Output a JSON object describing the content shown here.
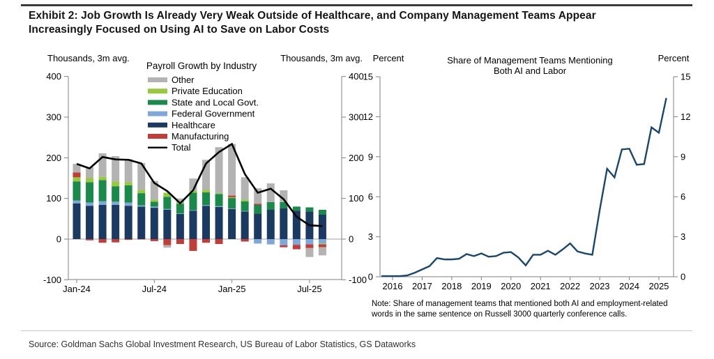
{
  "page": {
    "title_line1": "Exhibit 2: Job Growth Is Already Very Weak Outside of Healthcare, and Company Management Teams Appear",
    "title_line2": "Increasingly Focused on Using AI to Save on Labor Costs",
    "source": "Source: Goldman Sachs Global Investment Research, US Bureau of Labor Statistics, GS Dataworks"
  },
  "chart_data": [
    {
      "type": "bar",
      "stacked": true,
      "title": "Payroll Growth by Industry",
      "axis_label_left": "Thousands, 3m avg.",
      "axis_label_right": "Thousands, 3m avg.",
      "ylim": [
        -100,
        400
      ],
      "yticks": [
        400,
        300,
        200,
        100,
        0,
        -100
      ],
      "grid": "zero-line-only",
      "categories": [
        "Jan-24",
        "Feb-24",
        "Mar-24",
        "Apr-24",
        "May-24",
        "Jun-24",
        "Jul-24",
        "Aug-24",
        "Sep-24",
        "Oct-24",
        "Nov-24",
        "Dec-24",
        "Jan-25",
        "Feb-25",
        "Mar-25",
        "Apr-25",
        "May-25",
        "Jun-25",
        "Jul-25",
        "Aug-25"
      ],
      "xtick_labels": [
        "Jan-24",
        "Jul-24",
        "Jan-25",
        "Jul-25"
      ],
      "xtick_indices": [
        0,
        6,
        12,
        18
      ],
      "series": [
        {
          "name": "Healthcare",
          "color": "#1B3A61",
          "values": [
            88,
            82,
            84,
            84,
            82,
            80,
            77,
            72,
            62,
            70,
            82,
            79,
            74,
            68,
            63,
            72,
            76,
            70,
            68,
            60
          ]
        },
        {
          "name": "Federal Government",
          "color": "#7FA7D9",
          "values": [
            7,
            8,
            9,
            8,
            8,
            3,
            3,
            2,
            1,
            1,
            2,
            2,
            1,
            1,
            -11,
            -13,
            -15,
            -14,
            -13,
            -11
          ]
        },
        {
          "name": "State and Local Govt.",
          "color": "#1A8A4A",
          "values": [
            47,
            50,
            52,
            38,
            42,
            30,
            12,
            30,
            24,
            43,
            31,
            30,
            26,
            24,
            21,
            19,
            15,
            10,
            10,
            12
          ]
        },
        {
          "name": "Private Education",
          "color": "#97C93D",
          "values": [
            10,
            10,
            8,
            12,
            8,
            8,
            5,
            10,
            5,
            5,
            6,
            2,
            2,
            4,
            0,
            0,
            0,
            0,
            0,
            -2
          ]
        },
        {
          "name": "Manufacturing",
          "color": "#C23C38",
          "values": [
            12,
            -3,
            -9,
            -8,
            -2,
            -1,
            -5,
            -15,
            -12,
            -29,
            -9,
            -12,
            4,
            -6,
            3,
            0,
            -5,
            -11,
            -9,
            -7
          ]
        },
        {
          "name": "Other",
          "color": "#B3B3B3",
          "values": [
            21,
            27,
            58,
            62,
            57,
            66,
            46,
            -6,
            8,
            30,
            74,
            113,
            127,
            55,
            38,
            46,
            29,
            0,
            -22,
            -20
          ]
        }
      ],
      "total_series": {
        "name": "Total",
        "color": "#000000",
        "values": [
          185,
          174,
          202,
          196,
          195,
          186,
          138,
          118,
          88,
          120,
          186,
          214,
          234,
          160,
          114,
          124,
          98,
          55,
          34,
          32
        ]
      },
      "legend": [
        {
          "label": "Other",
          "color": "#B3B3B3",
          "swatch": "box"
        },
        {
          "label": "Private Education",
          "color": "#97C93D",
          "swatch": "box"
        },
        {
          "label": "State and Local Govt.",
          "color": "#1A8A4A",
          "swatch": "box"
        },
        {
          "label": "Federal Government",
          "color": "#7FA7D9",
          "swatch": "box"
        },
        {
          "label": "Healthcare",
          "color": "#1B3A61",
          "swatch": "box"
        },
        {
          "label": "Manufacturing",
          "color": "#C23C38",
          "swatch": "box"
        },
        {
          "label": "Total",
          "color": "#000000",
          "swatch": "line"
        }
      ]
    },
    {
      "type": "line",
      "title_lines": [
        "Share of Management Teams Mentioning",
        "Both AI and Labor"
      ],
      "axis_label_left": "Percent",
      "axis_label_right": "Percent",
      "ylim": [
        0,
        15
      ],
      "yticks": [
        15,
        12,
        9,
        6,
        3,
        0
      ],
      "xtick_labels": [
        "2016",
        "2017",
        "2018",
        "2019",
        "2020",
        "2021",
        "2022",
        "2023",
        "2024",
        "2025"
      ],
      "series": [
        {
          "name": "Share of management teams mentioning both AI and labor",
          "color": "#17466F",
          "x_start": 2016.0,
          "x_step": 0.25,
          "values": [
            0.05,
            0.05,
            0.1,
            0.3,
            0.55,
            0.8,
            1.4,
            1.3,
            1.3,
            1.35,
            1.7,
            1.55,
            1.75,
            1.5,
            1.55,
            1.8,
            1.85,
            1.45,
            0.85,
            1.65,
            1.65,
            1.95,
            1.65,
            2.05,
            2.5,
            1.9,
            1.75,
            1.65,
            5.0,
            8.1,
            7.45,
            9.55,
            9.6,
            8.4,
            8.45,
            11.2,
            10.8,
            13.4
          ]
        }
      ],
      "note": "Note: Share of management teams that mentioned both AI and employment-related words in the same sentence on Russell 3000 quarterly conference calls."
    }
  ]
}
